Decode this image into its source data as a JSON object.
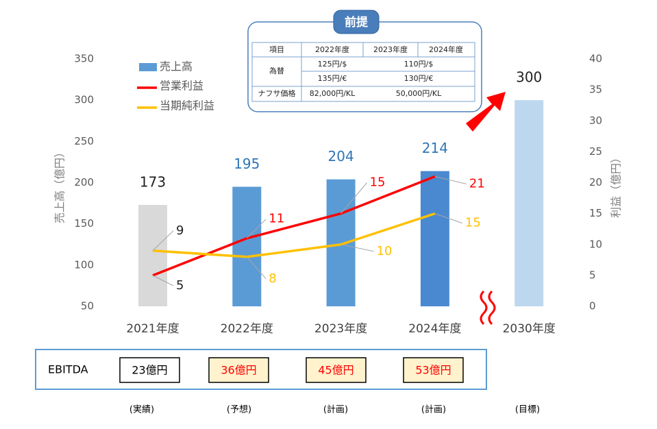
{
  "chart_data": {
    "type": "combo",
    "categories": [
      "2021年度",
      "2022年度",
      "2023年度",
      "2024年度",
      "2030年度"
    ],
    "ylabel": "売上高（億円）",
    "y2label": "利益（億円）",
    "ylim": [
      50,
      350
    ],
    "yticks": [
      50,
      100,
      150,
      200,
      250,
      300,
      350
    ],
    "y2lim": [
      0,
      40
    ],
    "y2ticks": [
      0,
      5,
      10,
      15,
      20,
      25,
      30,
      35,
      40
    ],
    "series": [
      {
        "name": "売上高",
        "kind": "bar",
        "color": "#5b9bd5",
        "colors": [
          "#d9d9d9",
          "#5b9bd5",
          "#5b9bd5",
          "#4a89cf",
          "#bdd7ee"
        ],
        "label_colors": [
          "#222222",
          "#2e75b6",
          "#2e75b6",
          "#2e75b6",
          "#222222"
        ],
        "values": [
          173,
          195,
          204,
          214,
          300
        ]
      },
      {
        "name": "営業利益",
        "kind": "line",
        "axis": "y2",
        "color": "#ff0000",
        "label_color": "#ff0000",
        "values": [
          5,
          11,
          15,
          21,
          null
        ]
      },
      {
        "name": "当期純利益",
        "kind": "line",
        "axis": "y2",
        "color": "#ffc000",
        "label_color": "#ffc000",
        "values": [
          9,
          8,
          10,
          15,
          null
        ]
      }
    ]
  },
  "premise": {
    "title": "前提",
    "header": [
      "項目",
      "2022年度",
      "2023年度",
      "2024年度"
    ],
    "fx": {
      "label": "為替",
      "rows": [
        [
          "125円/$",
          "110円/$"
        ],
        [
          "135円/€",
          "130円/€"
        ]
      ]
    },
    "naphtha": {
      "label": "ナフサ価格",
      "cells": [
        "82,000円/KL",
        "50,000円/KL"
      ]
    }
  },
  "ebitda": {
    "label": "EBITDA",
    "values": [
      "23億円",
      "36億円",
      "45億円",
      "53億円"
    ]
  },
  "status": [
    "(実績)",
    "(予想)",
    "(計画)",
    "(計画)",
    "(目標)"
  ]
}
